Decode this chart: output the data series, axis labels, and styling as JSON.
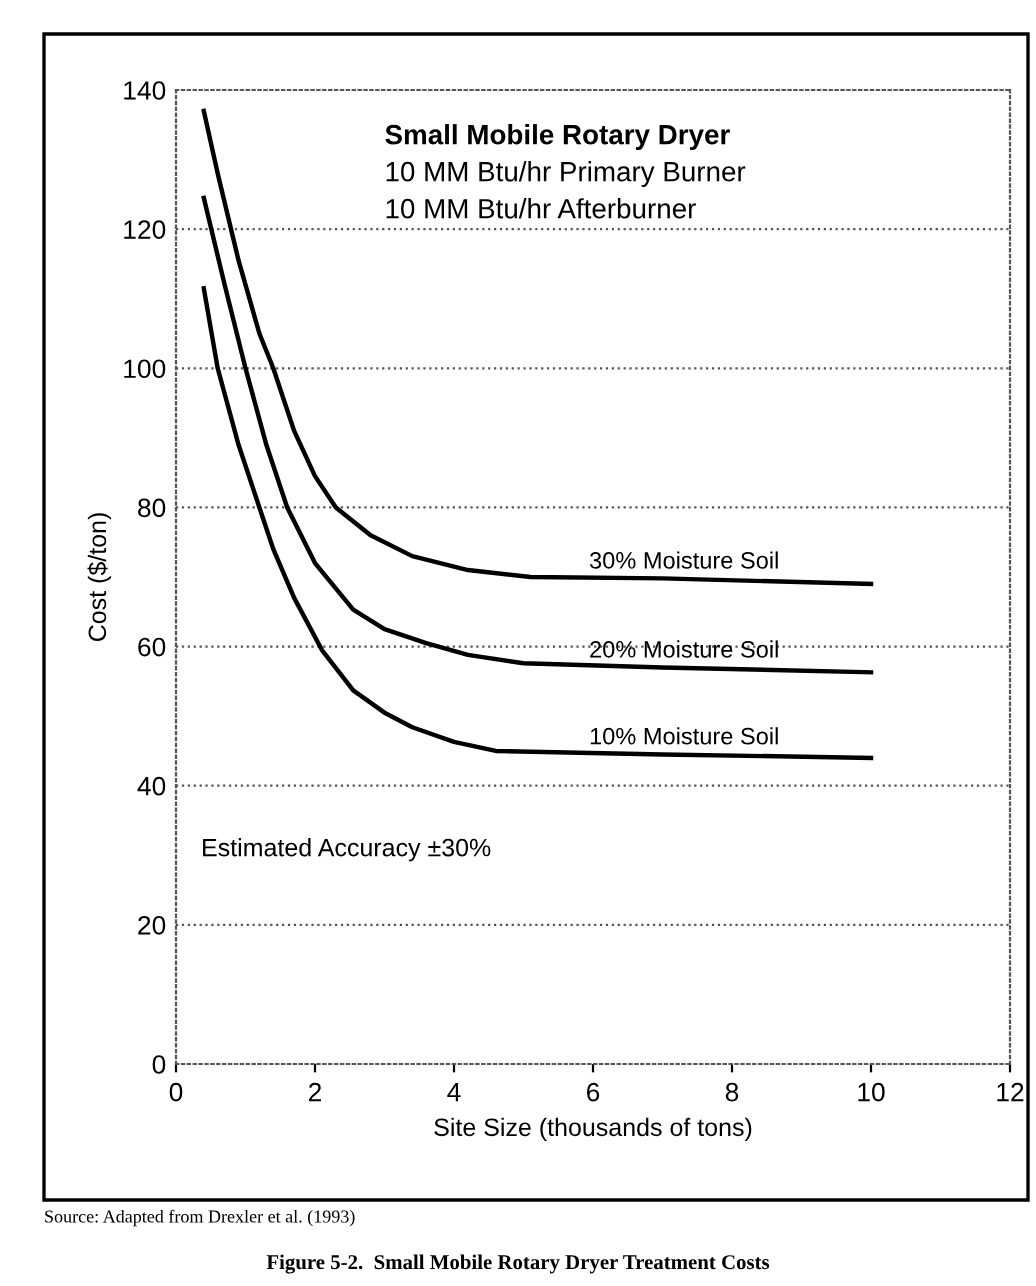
{
  "chart_data": {
    "type": "line",
    "title": "Figure 5-2.  Small Mobile Rotary Dryer Treatment Costs",
    "xlabel": "Site Size (thousands of tons)",
    "ylabel": "Cost ($/ton)",
    "xlim": [
      0,
      12
    ],
    "xticks": [
      0,
      2,
      4,
      6,
      8,
      10,
      12
    ],
    "ylim": [
      0,
      140
    ],
    "yticks": [
      0,
      20,
      40,
      60,
      80,
      100,
      120,
      140
    ],
    "grid": "y",
    "legend": false,
    "marker": "none",
    "line_style": "solid",
    "series": [
      {
        "name": "30% Moisture Soil",
        "color": "#000000",
        "x": [
          0.4,
          0.6,
          0.9,
          1.2,
          1.4,
          1.7,
          2.0,
          2.3,
          2.8,
          3.4,
          4.2,
          5.1,
          7,
          10
        ],
        "values": [
          137,
          128,
          115.5,
          105,
          100,
          91,
          84.5,
          80,
          76,
          73,
          71,
          70,
          69.8,
          69
        ]
      },
      {
        "name": "20% Moisture Soil",
        "color": "#000000",
        "x": [
          0.4,
          0.7,
          1.0,
          1.3,
          1.6,
          2.0,
          2.55,
          3.0,
          3.6,
          4.2,
          5.0,
          7,
          10
        ],
        "values": [
          124.5,
          112,
          100,
          89,
          80,
          72,
          65.3,
          62.5,
          60.5,
          58.8,
          57.6,
          57,
          56.3
        ]
      },
      {
        "name": "10% Moisture Soil",
        "color": "#000000",
        "x": [
          0.4,
          0.6,
          0.9,
          1.2,
          1.4,
          1.7,
          2.1,
          2.55,
          3.0,
          3.4,
          4.0,
          4.6,
          7,
          10
        ],
        "values": [
          111.5,
          100,
          89,
          80,
          74,
          67,
          59.5,
          53.7,
          50.5,
          48.4,
          46.3,
          45,
          44.5,
          44
        ]
      }
    ],
    "annotations": [
      "Small Mobile Rotary Dryer",
      "10 MM Btu/hr Primary Burner",
      "10 MM Btu/hr Afterburner",
      "Estimated Accuracy ±30%",
      "Source: Adapted from Drexler et al. (1993)"
    ]
  }
}
